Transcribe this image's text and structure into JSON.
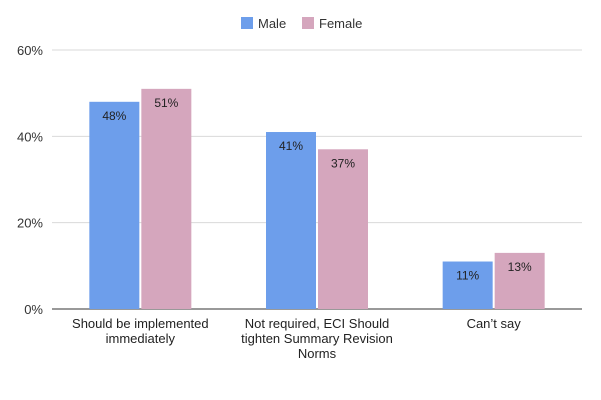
{
  "chart_data": {
    "type": "bar",
    "categories": [
      [
        "Should be implemented",
        "immediately"
      ],
      [
        "Not required, ECI Should",
        "tighten Summary Revision",
        "Norms"
      ],
      [
        "Can’t say"
      ]
    ],
    "series": [
      {
        "name": "Male",
        "values": [
          48,
          41,
          11
        ],
        "labels": [
          "48%",
          "41%",
          "11%"
        ],
        "color": "#6d9eeb"
      },
      {
        "name": "Female",
        "values": [
          51,
          37,
          13
        ],
        "labels": [
          "51%",
          "37%",
          "13%"
        ],
        "color": "#d5a6bd"
      }
    ],
    "yticks": [
      {
        "value": 0,
        "label": "0%"
      },
      {
        "value": 20,
        "label": "20%"
      },
      {
        "value": 40,
        "label": "40%"
      },
      {
        "value": 60,
        "label": "60%"
      }
    ],
    "ylim": [
      0,
      60
    ],
    "grid": true,
    "legend_position": "top-center",
    "title": "",
    "xlabel": "",
    "ylabel": ""
  }
}
